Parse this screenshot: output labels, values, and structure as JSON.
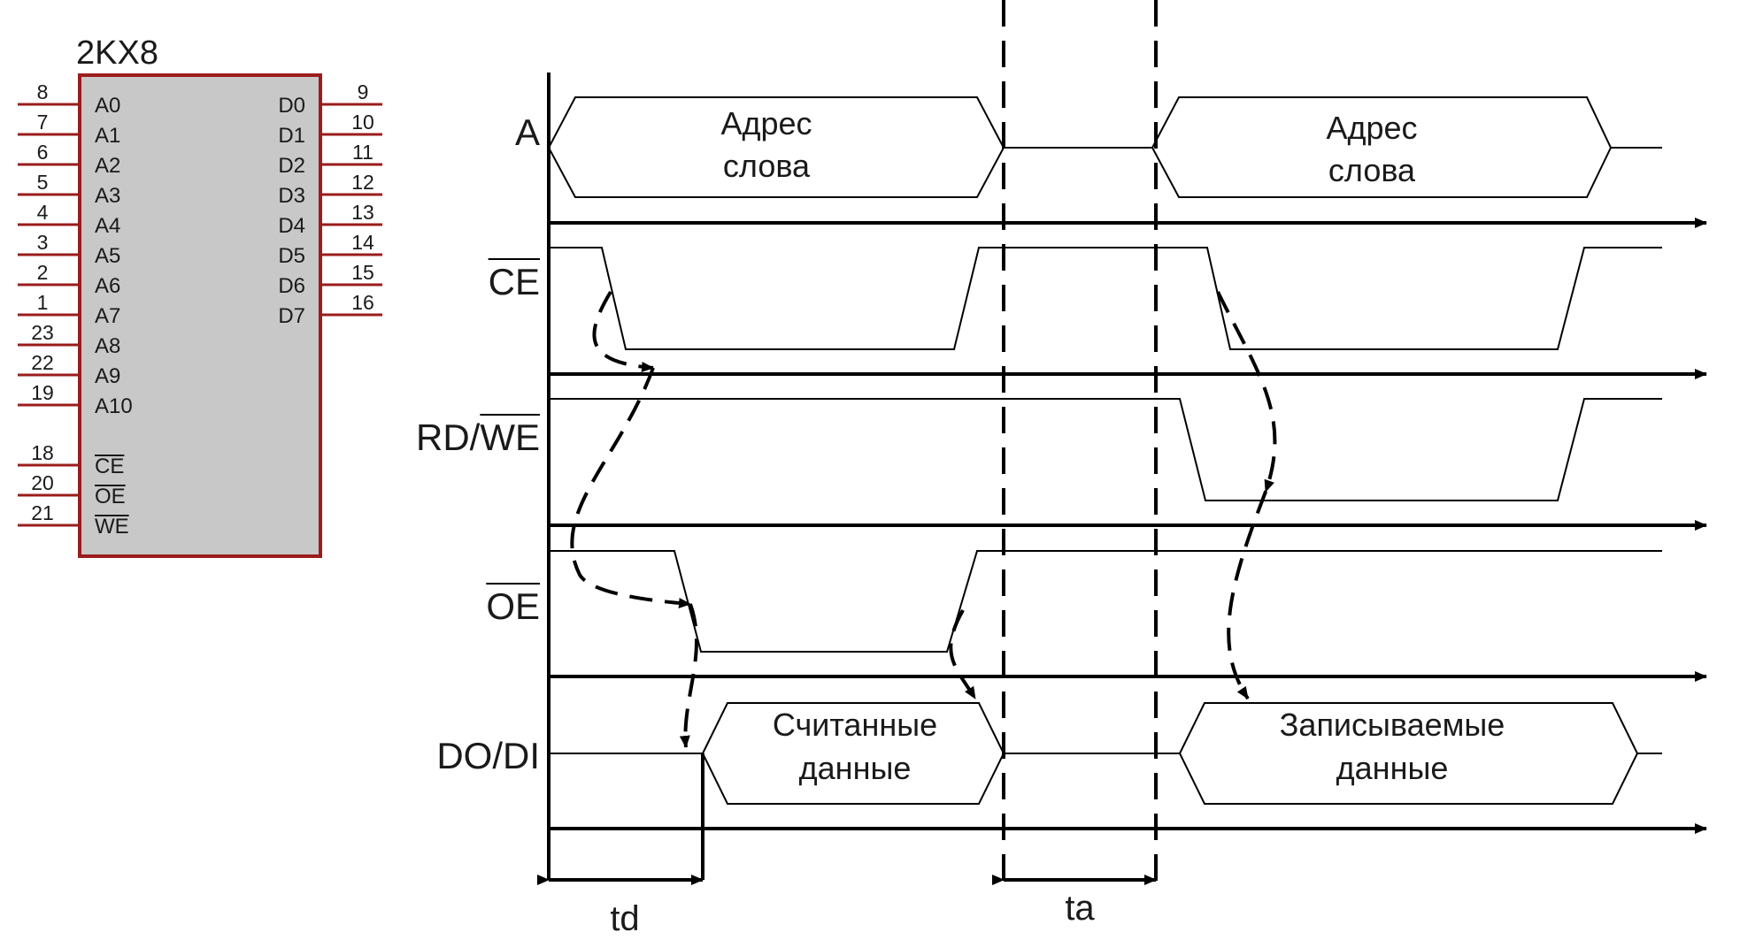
{
  "chip": {
    "title": "2KX8",
    "body_color": "#c8c8c8",
    "outline_color": "#9b1c1c",
    "left_pins": [
      {
        "num": "8",
        "label": "A0",
        "bar": false
      },
      {
        "num": "7",
        "label": "A1",
        "bar": false
      },
      {
        "num": "6",
        "label": "A2",
        "bar": false
      },
      {
        "num": "5",
        "label": "A3",
        "bar": false
      },
      {
        "num": "4",
        "label": "A4",
        "bar": false
      },
      {
        "num": "3",
        "label": "A5",
        "bar": false
      },
      {
        "num": "2",
        "label": "A6",
        "bar": false
      },
      {
        "num": "1",
        "label": "A7",
        "bar": false
      },
      {
        "num": "23",
        "label": "A8",
        "bar": false
      },
      {
        "num": "22",
        "label": "A9",
        "bar": false
      },
      {
        "num": "19",
        "label": "A10",
        "bar": false
      },
      {
        "num": "18",
        "label": "CE",
        "bar": true
      },
      {
        "num": "20",
        "label": "OE",
        "bar": true
      },
      {
        "num": "21",
        "label": "WE",
        "bar": true
      }
    ],
    "right_pins": [
      {
        "num": "9",
        "label": "D0"
      },
      {
        "num": "10",
        "label": "D1"
      },
      {
        "num": "11",
        "label": "D2"
      },
      {
        "num": "12",
        "label": "D3"
      },
      {
        "num": "13",
        "label": "D4"
      },
      {
        "num": "14",
        "label": "D5"
      },
      {
        "num": "15",
        "label": "D6"
      },
      {
        "num": "16",
        "label": "D7"
      }
    ]
  },
  "timing": {
    "signals": {
      "a": "A",
      "ce": "CE",
      "rdwe_rd": "RD/",
      "rdwe_we": "WE",
      "oe": "OE",
      "dodi": "DO/DI"
    },
    "bus_text": {
      "addr1_line1": "Адрес",
      "addr1_line2": "слова",
      "addr2_line1": "Адрес",
      "addr2_line2": "слова",
      "read_line1": "Считанные",
      "read_line2": "данные",
      "write_line1": "Записываемые",
      "write_line2": "данные"
    },
    "intervals": {
      "td": "td",
      "ta": "ta"
    }
  }
}
